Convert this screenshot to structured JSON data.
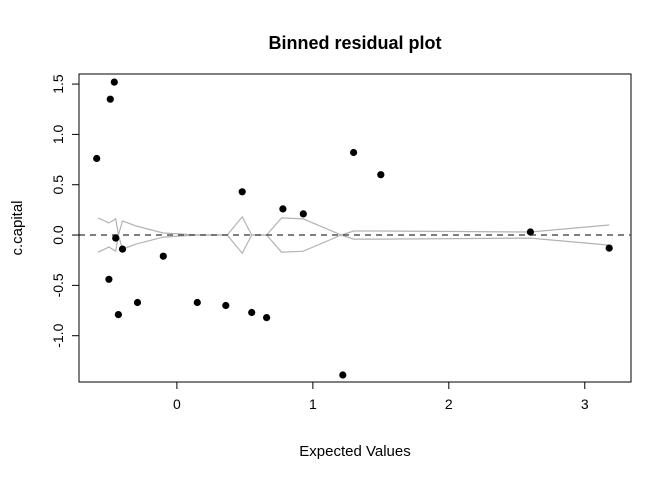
{
  "chart_data": {
    "type": "scatter",
    "title": "Binned residual plot",
    "xlabel": "Expected Values",
    "ylabel": "c.capital",
    "xlim": [
      -0.72,
      3.34
    ],
    "ylim": [
      -1.46,
      1.6
    ],
    "xticks": [
      0,
      1,
      2,
      3
    ],
    "yticks": [
      -1.0,
      -0.5,
      0.0,
      0.5,
      1.0,
      1.5
    ],
    "xtick_labels": [
      "0",
      "1",
      "2",
      "3"
    ],
    "ytick_labels": [
      "-1.0",
      "-0.5",
      "0.0",
      "0.5",
      "1.0",
      "1.5"
    ],
    "grid": false,
    "reference_line": {
      "y": 0,
      "style": "dashed"
    },
    "points": [
      {
        "x": -0.59,
        "y": 0.76
      },
      {
        "x": -0.49,
        "y": 1.35
      },
      {
        "x": -0.46,
        "y": 1.52
      },
      {
        "x": -0.5,
        "y": -0.44
      },
      {
        "x": -0.45,
        "y": -0.03
      },
      {
        "x": -0.43,
        "y": -0.79
      },
      {
        "x": -0.4,
        "y": -0.14
      },
      {
        "x": -0.29,
        "y": -0.67
      },
      {
        "x": -0.1,
        "y": -0.21
      },
      {
        "x": 0.15,
        "y": -0.67
      },
      {
        "x": 0.36,
        "y": -0.7
      },
      {
        "x": 0.48,
        "y": 0.43
      },
      {
        "x": 0.55,
        "y": -0.77
      },
      {
        "x": 0.66,
        "y": -0.82
      },
      {
        "x": 0.78,
        "y": 0.26
      },
      {
        "x": 0.93,
        "y": 0.21
      },
      {
        "x": 1.22,
        "y": -1.39
      },
      {
        "x": 1.3,
        "y": 0.82
      },
      {
        "x": 1.5,
        "y": 0.6
      },
      {
        "x": 2.6,
        "y": 0.03
      },
      {
        "x": 3.18,
        "y": -0.13
      }
    ],
    "bounds_upper": [
      {
        "x": -0.58,
        "y": 0.17
      },
      {
        "x": -0.5,
        "y": 0.12
      },
      {
        "x": -0.45,
        "y": 0.16
      },
      {
        "x": -0.43,
        "y": 0.0
      },
      {
        "x": -0.4,
        "y": 0.14
      },
      {
        "x": -0.3,
        "y": 0.09
      },
      {
        "x": -0.1,
        "y": 0.02
      },
      {
        "x": 0.15,
        "y": 0.0
      },
      {
        "x": 0.37,
        "y": 0.0
      },
      {
        "x": 0.48,
        "y": 0.18
      },
      {
        "x": 0.55,
        "y": 0.0
      },
      {
        "x": 0.66,
        "y": 0.0
      },
      {
        "x": 0.77,
        "y": 0.17
      },
      {
        "x": 0.93,
        "y": 0.16
      },
      {
        "x": 1.21,
        "y": 0.0
      },
      {
        "x": 1.3,
        "y": 0.04
      },
      {
        "x": 1.5,
        "y": 0.04
      },
      {
        "x": 2.6,
        "y": 0.03
      },
      {
        "x": 3.18,
        "y": 0.1
      }
    ],
    "bounds_lower": [
      {
        "x": -0.58,
        "y": -0.17
      },
      {
        "x": -0.5,
        "y": -0.12
      },
      {
        "x": -0.45,
        "y": -0.16
      },
      {
        "x": -0.43,
        "y": 0.0
      },
      {
        "x": -0.4,
        "y": -0.14
      },
      {
        "x": -0.3,
        "y": -0.09
      },
      {
        "x": -0.1,
        "y": -0.02
      },
      {
        "x": 0.15,
        "y": 0.0
      },
      {
        "x": 0.37,
        "y": 0.0
      },
      {
        "x": 0.48,
        "y": -0.18
      },
      {
        "x": 0.55,
        "y": 0.0
      },
      {
        "x": 0.66,
        "y": 0.0
      },
      {
        "x": 0.77,
        "y": -0.17
      },
      {
        "x": 0.93,
        "y": -0.16
      },
      {
        "x": 1.21,
        "y": 0.0
      },
      {
        "x": 1.3,
        "y": -0.04
      },
      {
        "x": 1.5,
        "y": -0.04
      },
      {
        "x": 2.6,
        "y": -0.03
      },
      {
        "x": 3.18,
        "y": -0.1
      }
    ],
    "colors": {
      "points": "#000000",
      "bounds": "#b3b3b3",
      "reference_line": "#555555"
    }
  }
}
